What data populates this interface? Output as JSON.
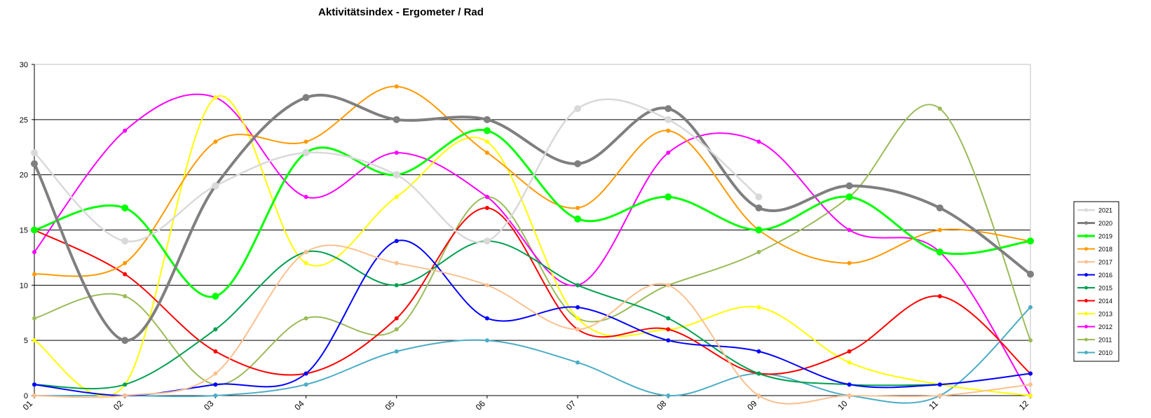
{
  "chart_data": {
    "type": "line",
    "title": "Aktivitätsindex - Ergometer / Rad",
    "xlabel": "",
    "ylabel": "",
    "categories": [
      "01",
      "02",
      "03",
      "04",
      "05",
      "06",
      "07",
      "08",
      "09",
      "10",
      "11",
      "12"
    ],
    "ylim": [
      0,
      30
    ],
    "yticks": [
      0,
      5,
      10,
      15,
      20,
      25,
      30
    ],
    "grid": true,
    "smooth": true,
    "legend_position": "right",
    "series": [
      {
        "name": "2021",
        "color": "#d9d9d9",
        "width": 2.5,
        "marker": 5,
        "values": [
          22,
          14,
          19,
          22,
          20,
          14,
          26,
          25,
          18,
          null,
          null,
          null
        ]
      },
      {
        "name": "2020",
        "color": "#7f7f7f",
        "width": 4,
        "marker": 5,
        "values": [
          21,
          5,
          19,
          27,
          25,
          25,
          21,
          26,
          17,
          19,
          17,
          11
        ]
      },
      {
        "name": "2019",
        "color": "#00ff00",
        "width": 3,
        "marker": 5,
        "values": [
          15,
          17,
          9,
          22,
          20,
          24,
          16,
          18,
          15,
          18,
          13,
          14
        ]
      },
      {
        "name": "2018",
        "color": "#ff9900",
        "width": 2,
        "marker": 3,
        "values": [
          11,
          12,
          23,
          23,
          28,
          22,
          17,
          24,
          15,
          12,
          15,
          14
        ]
      },
      {
        "name": "2017",
        "color": "#fac090",
        "width": 2,
        "marker": 3,
        "values": [
          0,
          0,
          2,
          13,
          12,
          10,
          6,
          10,
          0,
          0,
          0,
          1
        ]
      },
      {
        "name": "2016",
        "color": "#0000ff",
        "width": 2,
        "marker": 3,
        "values": [
          1,
          0,
          1,
          2,
          14,
          7,
          8,
          5,
          4,
          1,
          1,
          2
        ]
      },
      {
        "name": "2015",
        "color": "#00a050",
        "width": 2,
        "marker": 3,
        "values": [
          1,
          1,
          6,
          13,
          10,
          14,
          10,
          7,
          2,
          1,
          1,
          null
        ]
      },
      {
        "name": "2014",
        "color": "#ff0000",
        "width": 2,
        "marker": 3,
        "values": [
          15,
          11,
          4,
          2,
          7,
          17,
          6,
          6,
          2,
          4,
          9,
          2
        ]
      },
      {
        "name": "2013",
        "color": "#ffff00",
        "width": 2,
        "marker": 3,
        "values": [
          5,
          1,
          27,
          12,
          18,
          23,
          7,
          6,
          8,
          3,
          1,
          0
        ]
      },
      {
        "name": "2012",
        "color": "#ff00ff",
        "width": 2,
        "marker": 3,
        "values": [
          13,
          24,
          27,
          18,
          22,
          18,
          10,
          22,
          23,
          15,
          13,
          0
        ]
      },
      {
        "name": "2011",
        "color": "#9bbb59",
        "width": 2,
        "marker": 3,
        "values": [
          7,
          9,
          1,
          7,
          6,
          18,
          7,
          10,
          13,
          18,
          26,
          5
        ]
      },
      {
        "name": "2010",
        "color": "#4bacc6",
        "width": 2,
        "marker": 3,
        "values": [
          0,
          0,
          0,
          1,
          4,
          5,
          3,
          0,
          2,
          0,
          0,
          8
        ]
      }
    ]
  }
}
